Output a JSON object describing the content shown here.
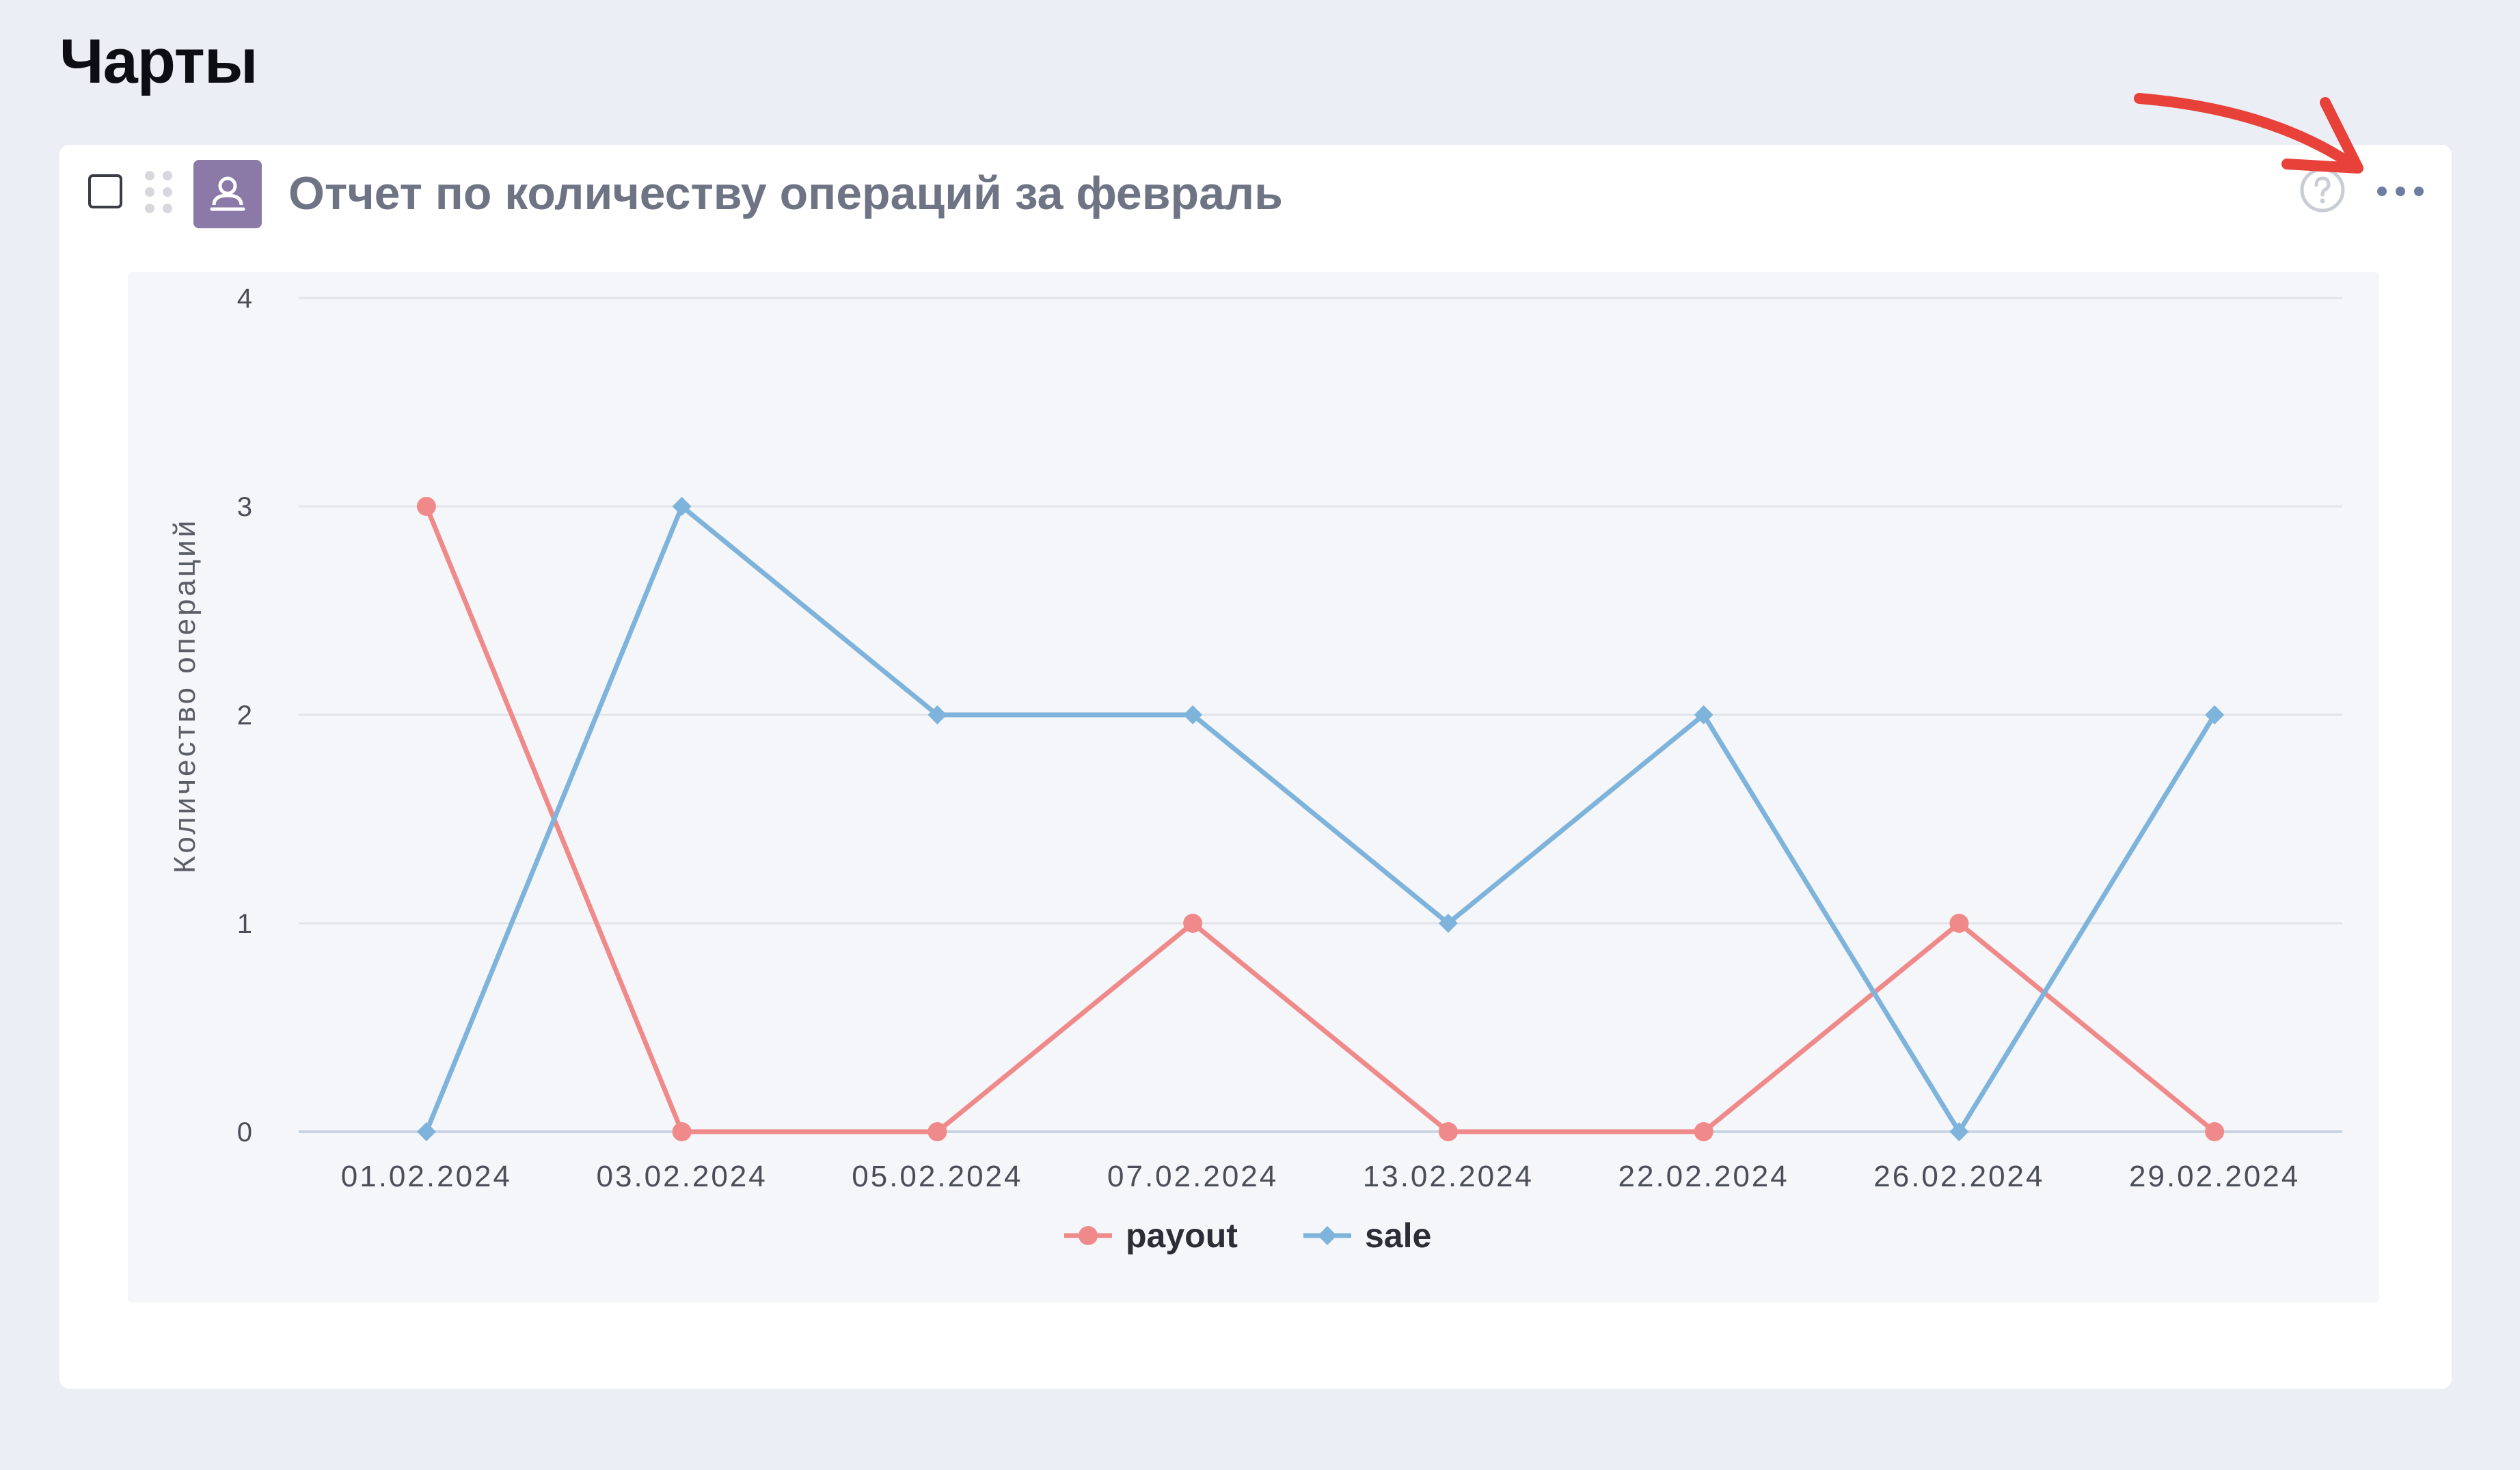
{
  "page": {
    "title": "Чарты"
  },
  "card": {
    "title": "Отчет по количеству операций за февраль",
    "icons": {
      "checkbox": "checkbox-icon",
      "drag": "drag-handle-icon",
      "report": "user-report-icon",
      "help": "question-circle-icon",
      "more": "more-horizontal-icon"
    }
  },
  "colors": {
    "payout": "#f08a8a",
    "sale": "#7eb3db",
    "icon_bg": "#8b7aa8",
    "annotation_arrow": "#e8413a"
  },
  "chart_data": {
    "type": "line",
    "title": "",
    "xlabel": "",
    "ylabel": "Количество операций",
    "categories": [
      "01.02.2024",
      "03.02.2024",
      "05.02.2024",
      "07.02.2024",
      "13.02.2024",
      "22.02.2024",
      "26.02.2024",
      "29.02.2024"
    ],
    "series": [
      {
        "name": "payout",
        "marker": "circle",
        "values": [
          3,
          0,
          0,
          1,
          0,
          0,
          1,
          0
        ]
      },
      {
        "name": "sale",
        "marker": "diamond",
        "values": [
          0,
          3,
          2,
          2,
          1,
          2,
          0,
          2
        ]
      }
    ],
    "ylim": [
      0,
      4
    ],
    "yticks": [
      0,
      1,
      2,
      3,
      4
    ],
    "grid": true,
    "legend": "bottom-center"
  }
}
